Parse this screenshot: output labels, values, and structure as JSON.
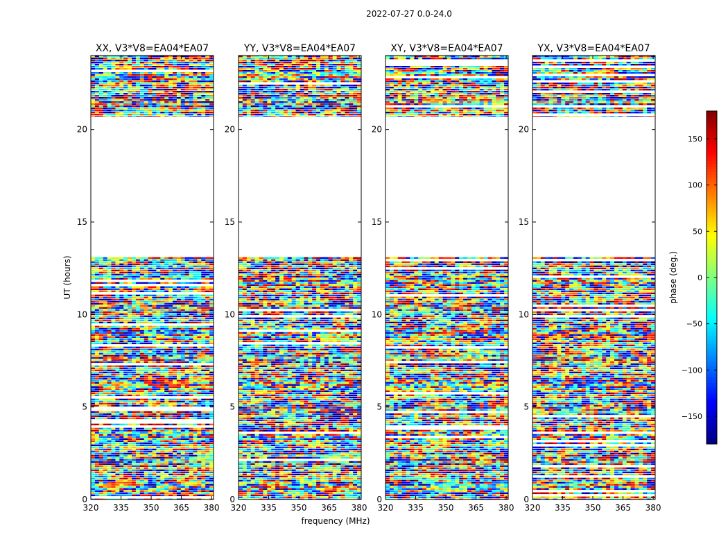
{
  "chart_data": {
    "type": "heatmap",
    "title": "2022-07-27 0.0-24.0",
    "xlabel": "frequency (MHz)",
    "ylabel": "UT (hours)",
    "xlim": [
      320,
      381
    ],
    "ylim": [
      0,
      24
    ],
    "xticks": [
      "320",
      "335",
      "350",
      "365",
      "380"
    ],
    "yticks": [
      "0",
      "5",
      "10",
      "15",
      "20"
    ],
    "panels": [
      {
        "title": "XX, V3*V8=EA04*EA07",
        "polarization": "XX"
      },
      {
        "title": "YY, V3*V8=EA04*EA07",
        "polarization": "YY"
      },
      {
        "title": "XY, V3*V8=EA04*EA07",
        "polarization": "XY"
      },
      {
        "title": "YX, V3*V8=EA04*EA07",
        "polarization": "YX"
      }
    ],
    "colorbar": {
      "label": "phase (deg.)",
      "range": [
        -180,
        180
      ],
      "ticks": [
        "150",
        "100",
        "50",
        "0",
        "−50",
        "−100",
        "−150"
      ],
      "colormap": "jet"
    },
    "data_ranges_ut_hours": [
      [
        0.0,
        13.1
      ],
      [
        20.7,
        24.0
      ]
    ],
    "gap_ut_hours": [
      13.1,
      20.7
    ]
  }
}
